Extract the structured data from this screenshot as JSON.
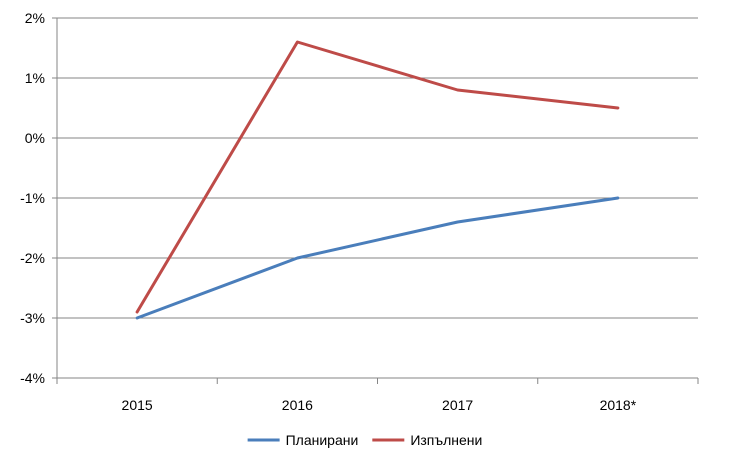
{
  "chart_data": {
    "type": "line",
    "categories": [
      "2015",
      "2016",
      "2017",
      "2018*"
    ],
    "series": [
      {
        "name": "Планирани",
        "values": [
          -3.0,
          -2.0,
          -1.4,
          -1.0
        ],
        "color": "#4A7EBB"
      },
      {
        "name": "Изпълнени",
        "values": [
          -2.9,
          1.6,
          0.8,
          0.5
        ],
        "color": "#BE4B48"
      }
    ],
    "y_ticks": [
      "2%",
      "1%",
      "0%",
      "-1%",
      "-2%",
      "-3%",
      "-4%"
    ],
    "ylim": [
      -4,
      2
    ],
    "grid": true,
    "legend_position": "bottom",
    "title": "",
    "xlabel": "",
    "ylabel": ""
  }
}
